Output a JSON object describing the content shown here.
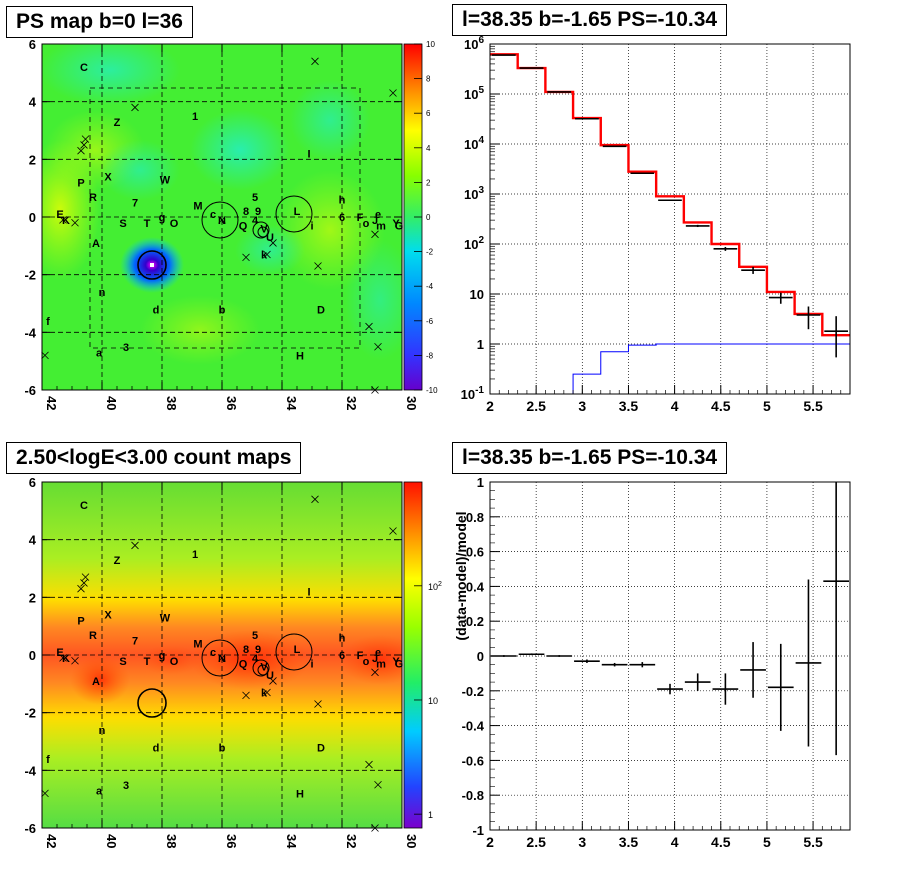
{
  "panels": {
    "ps_map_title": "PS map b=0 l=36",
    "spectrum_title": "l=38.35 b=-1.65 PS=-10.34",
    "count_map_title": "2.50<logE<3.00 count maps",
    "residual_title": "l=38.35 b=-1.65 PS=-10.34"
  },
  "chart_data": [
    {
      "id": "ps_map",
      "type": "heatmap",
      "title": "PS map b=0 l=36",
      "x_ticks": [
        "42",
        "40",
        "38",
        "36",
        "34",
        "32",
        "30"
      ],
      "y_ticks": [
        "6",
        "4",
        "2",
        "0",
        "-2",
        "-4",
        "-6"
      ],
      "xlim": [
        42,
        30
      ],
      "ylim": [
        -6,
        6
      ],
      "grid": true,
      "colorbar": {
        "min": -10,
        "max": 10,
        "ticks": [
          "10",
          "8",
          "6",
          "4",
          "2",
          "0",
          "-2",
          "-4",
          "-6",
          "-8",
          "-10"
        ]
      },
      "source_markers": [
        {
          "label": "C",
          "l": 40.6,
          "b": 5.2
        },
        {
          "label": "Z",
          "l": 39.5,
          "b": 3.3
        },
        {
          "label": "1",
          "l": 36.9,
          "b": 3.5
        },
        {
          "label": "I",
          "l": 33.1,
          "b": 2.2
        },
        {
          "label": "X",
          "l": 39.8,
          "b": 1.4
        },
        {
          "label": "W",
          "l": 37.9,
          "b": 1.3
        },
        {
          "label": "P",
          "l": 40.7,
          "b": 1.2
        },
        {
          "label": "R",
          "l": 40.3,
          "b": 0.7
        },
        {
          "label": "7",
          "l": 38.9,
          "b": 0.5
        },
        {
          "label": "M",
          "l": 36.8,
          "b": 0.4
        },
        {
          "label": "5",
          "l": 34.9,
          "b": 0.7
        },
        {
          "label": "h",
          "l": 32.0,
          "b": 0.6
        },
        {
          "label": "E",
          "l": 41.4,
          "b": 0.1
        },
        {
          "label": "K",
          "l": 41.2,
          "b": -0.1
        },
        {
          "label": "S",
          "l": 39.3,
          "b": -0.2
        },
        {
          "label": "T",
          "l": 38.5,
          "b": -0.2
        },
        {
          "label": "g",
          "l": 38.0,
          "b": 0.0
        },
        {
          "label": "O",
          "l": 37.6,
          "b": -0.2
        },
        {
          "label": "c",
          "l": 36.3,
          "b": 0.1
        },
        {
          "label": "N",
          "l": 36.0,
          "b": -0.1
        },
        {
          "label": "Q",
          "l": 35.3,
          "b": -0.3
        },
        {
          "label": "8",
          "l": 35.2,
          "b": 0.2
        },
        {
          "label": "9",
          "l": 34.8,
          "b": 0.2
        },
        {
          "label": "4",
          "l": 34.9,
          "b": -0.1
        },
        {
          "label": "V",
          "l": 34.6,
          "b": -0.4
        },
        {
          "label": "U",
          "l": 34.4,
          "b": -0.7
        },
        {
          "label": "L",
          "l": 33.5,
          "b": 0.2
        },
        {
          "label": "i",
          "l": 33.0,
          "b": -0.3
        },
        {
          "label": "6",
          "l": 32.0,
          "b": 0.0
        },
        {
          "label": "F",
          "l": 31.4,
          "b": 0.0
        },
        {
          "label": "o",
          "l": 31.2,
          "b": -0.2
        },
        {
          "label": "J",
          "l": 30.9,
          "b": -0.1
        },
        {
          "label": "e",
          "l": 30.8,
          "b": 0.1
        },
        {
          "label": "m",
          "l": 30.7,
          "b": -0.3
        },
        {
          "label": "Y",
          "l": 30.2,
          "b": -0.2
        },
        {
          "label": "G",
          "l": 30.1,
          "b": -0.3
        },
        {
          "label": "A",
          "l": 40.2,
          "b": -0.9
        },
        {
          "label": "k",
          "l": 34.6,
          "b": -1.3
        },
        {
          "label": "n",
          "l": 40.0,
          "b": -2.6
        },
        {
          "label": "b",
          "l": 36.0,
          "b": -3.2
        },
        {
          "label": "d",
          "l": 38.2,
          "b": -3.2
        },
        {
          "label": "D",
          "l": 32.7,
          "b": -3.2
        },
        {
          "label": "f",
          "l": 41.8,
          "b": -3.6
        },
        {
          "label": "3",
          "l": 39.2,
          "b": -4.5
        },
        {
          "label": "a",
          "l": 40.1,
          "b": -4.7
        },
        {
          "label": "H",
          "l": 33.4,
          "b": -4.8
        }
      ]
    },
    {
      "id": "spectrum",
      "type": "line",
      "title": "l=38.35 b=-1.65 PS=-10.34",
      "x_ticks": [
        "2",
        "2.5",
        "3",
        "3.5",
        "4",
        "4.5",
        "5",
        "5.5"
      ],
      "y_ticks": [
        "10^{-1}",
        "1",
        "10",
        "10^{2}",
        "10^{3}",
        "10^{4}",
        "10^{5}",
        "10^{6}"
      ],
      "xlim": [
        2,
        5.9
      ],
      "ylim": [
        0.1,
        1000000
      ],
      "y_scale": "log",
      "grid": true,
      "bin_edges": [
        2.0,
        2.3,
        2.6,
        2.9,
        3.2,
        3.5,
        3.8,
        4.1,
        4.4,
        4.7,
        5.0,
        5.3,
        5.6,
        5.9
      ],
      "series": [
        {
          "values": [
            620000,
            330000,
            110000,
            33000,
            9500,
            2800,
            900,
            270,
            100,
            35,
            11,
            4,
            1.5
          ],
          "color": "#ff0000"
        },
        {
          "values": [
            600000,
            330000,
            110000,
            32000,
            9000,
            2600,
            750,
            230,
            80,
            30,
            8.5,
            3.8,
            1.8
          ],
          "color": "#000000"
        },
        {
          "values": [
            0,
            0,
            0.1,
            0.25,
            0.7,
            0.95,
            1.0,
            1.0,
            1.0,
            1.0,
            1.0,
            1.0,
            1.0
          ],
          "color": "#0000ff"
        }
      ]
    },
    {
      "id": "count_map",
      "type": "heatmap",
      "title": "2.50<logE<3.00 count maps",
      "x_ticks": [
        "42",
        "40",
        "38",
        "36",
        "34",
        "32",
        "30"
      ],
      "y_ticks": [
        "6",
        "4",
        "2",
        "0",
        "-2",
        "-4",
        "-6"
      ],
      "xlim": [
        42,
        30
      ],
      "ylim": [
        -6,
        6
      ],
      "grid": true,
      "colorbar": {
        "scale": "log",
        "ticks": [
          "10^{2}",
          "10",
          "1"
        ]
      }
    },
    {
      "id": "residuals",
      "type": "scatter",
      "title": "l=38.35 b=-1.65 PS=-10.34",
      "ylabel": "(data-model)/model",
      "x_ticks": [
        "2",
        "2.5",
        "3",
        "3.5",
        "4",
        "4.5",
        "5",
        "5.5"
      ],
      "y_ticks": [
        "1",
        "0.8",
        "0.6",
        "0.4",
        "0.2",
        "0",
        "-0.2",
        "-0.4",
        "-0.6",
        "-0.8",
        "-1"
      ],
      "xlim": [
        2,
        5.9
      ],
      "ylim": [
        -1,
        1
      ],
      "grid": true,
      "x": [
        2.15,
        2.45,
        2.75,
        3.05,
        3.35,
        3.65,
        3.95,
        4.25,
        4.55,
        4.85,
        5.15,
        5.45,
        5.75
      ],
      "y": [
        0.0,
        0.01,
        0.0,
        -0.03,
        -0.05,
        -0.05,
        -0.19,
        -0.15,
        -0.19,
        -0.08,
        -0.18,
        -0.04,
        0.43
      ],
      "yerr": [
        0.005,
        0.005,
        0.005,
        0.01,
        0.01,
        0.015,
        0.03,
        0.05,
        0.09,
        0.16,
        0.25,
        0.48,
        1.0
      ]
    }
  ]
}
